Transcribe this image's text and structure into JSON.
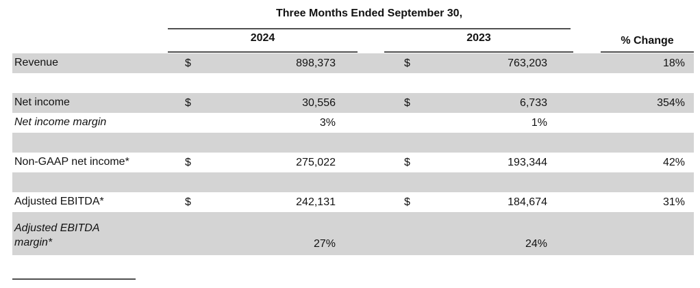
{
  "table": {
    "period_header": "Three Months Ended September 30,",
    "col_headers": {
      "y2024": "2024",
      "y2023": "2023",
      "pct_change": "% Change"
    },
    "rows": [
      {
        "label": "Revenue",
        "d1": "$",
        "v1": "898,373",
        "d2": "$",
        "v2": "763,203",
        "chg": "18%"
      },
      {
        "label": "",
        "d1": "",
        "v1": "",
        "d2": "",
        "v2": "",
        "chg": ""
      },
      {
        "label": "Net income",
        "d1": "$",
        "v1": "30,556",
        "d2": "$",
        "v2": "6,733",
        "chg": "354%"
      },
      {
        "label": "Net income margin",
        "d1": "",
        "v1": "3%",
        "d2": "",
        "v2": "1%",
        "chg": ""
      },
      {
        "label": "",
        "d1": "",
        "v1": "",
        "d2": "",
        "v2": "",
        "chg": ""
      },
      {
        "label": "Non-GAAP net income*",
        "d1": "$",
        "v1": "275,022",
        "d2": "$",
        "v2": "193,344",
        "chg": "42%"
      },
      {
        "label": "",
        "d1": "",
        "v1": "",
        "d2": "",
        "v2": "",
        "chg": ""
      },
      {
        "label": "Adjusted EBITDA*",
        "d1": "$",
        "v1": "242,131",
        "d2": "$",
        "v2": "184,674",
        "chg": "31%"
      },
      {
        "label": "Adjusted EBITDA\nmargin*",
        "d1": "",
        "v1": "27%",
        "d2": "",
        "v2": "24%",
        "chg": ""
      }
    ]
  },
  "colors": {
    "row_shade": "#d4d4d4",
    "rule": "#4f4f4f",
    "text": "#111111",
    "background": "#ffffff"
  }
}
